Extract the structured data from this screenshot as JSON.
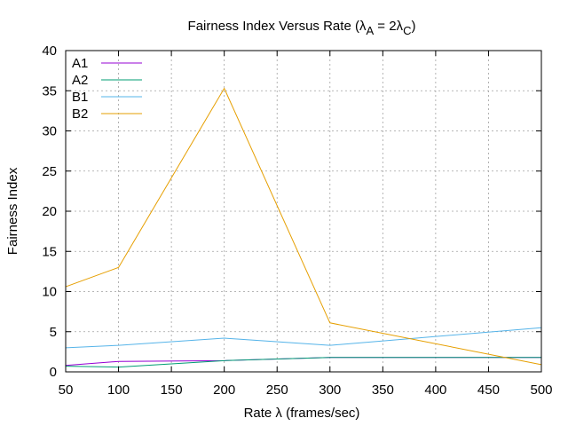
{
  "chart_data": {
    "type": "line",
    "title": "Fairness Index Versus Rate (λ",
    "title_sub_a": "A",
    "title_mid": " = 2λ",
    "title_sub_c": "C",
    "title_end": ")",
    "xlabel": "Rate λ (frames/sec)",
    "ylabel": "Fairness Index",
    "xlim": [
      50,
      500
    ],
    "ylim": [
      0,
      40
    ],
    "x_ticks": [
      50,
      100,
      150,
      200,
      250,
      300,
      350,
      400,
      450,
      500
    ],
    "y_ticks": [
      0,
      5,
      10,
      15,
      20,
      25,
      30,
      35,
      40
    ],
    "grid": true,
    "legend_position": "top-left",
    "x": [
      50,
      100,
      200,
      300,
      500
    ],
    "series": [
      {
        "name": "A1",
        "color": "#9400d3",
        "values": [
          0.8,
          1.3,
          1.4,
          1.8,
          1.8
        ]
      },
      {
        "name": "A2",
        "color": "#009e73",
        "values": [
          0.7,
          0.6,
          1.4,
          1.8,
          1.8
        ]
      },
      {
        "name": "B1",
        "color": "#56b4e9",
        "values": [
          3.0,
          3.3,
          4.2,
          3.3,
          5.5
        ]
      },
      {
        "name": "B2",
        "color": "#e69f00",
        "values": [
          10.6,
          13.0,
          35.3,
          6.1,
          0.9
        ]
      }
    ]
  }
}
